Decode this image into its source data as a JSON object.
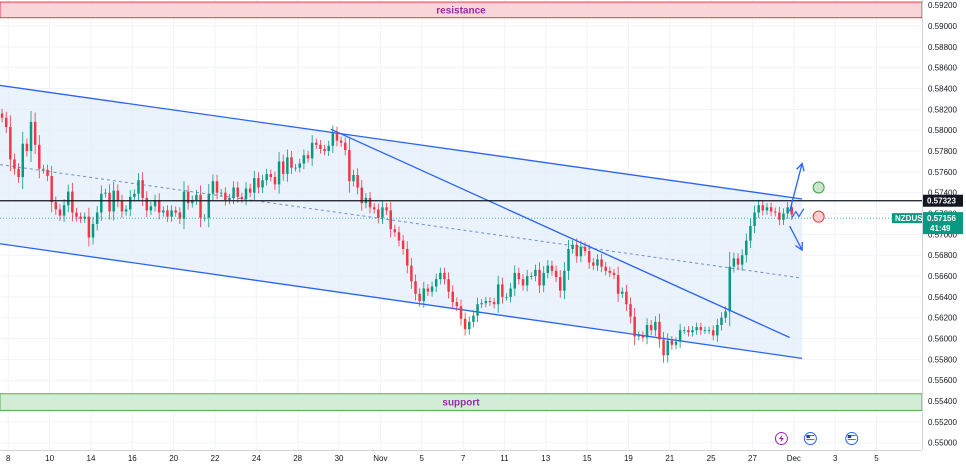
{
  "chart_data": {
    "type": "candlestick",
    "symbol": "NZDUSD",
    "ylim": [
      0.5493,
      0.5925
    ],
    "x_range": [
      0,
      223
    ],
    "y_ticks": [
      0.592,
      0.59,
      0.588,
      0.586,
      0.584,
      0.582,
      0.58,
      0.578,
      0.576,
      0.574,
      0.572,
      0.57,
      0.568,
      0.566,
      0.564,
      0.562,
      0.56,
      0.558,
      0.556,
      0.554,
      0.552,
      0.55
    ],
    "x_ticks": [
      {
        "x": 2,
        "label": "8"
      },
      {
        "x": 12,
        "label": "10"
      },
      {
        "x": 22,
        "label": "14"
      },
      {
        "x": 32,
        "label": "16"
      },
      {
        "x": 42,
        "label": "20"
      },
      {
        "x": 52,
        "label": "22"
      },
      {
        "x": 62,
        "label": "24"
      },
      {
        "x": 72,
        "label": "28"
      },
      {
        "x": 82,
        "label": "30"
      },
      {
        "x": 92,
        "label": "Nov"
      },
      {
        "x": 102,
        "label": "5"
      },
      {
        "x": 112,
        "label": "7"
      },
      {
        "x": 122,
        "label": "11"
      },
      {
        "x": 132,
        "label": "13"
      },
      {
        "x": 142,
        "label": "15"
      },
      {
        "x": 152,
        "label": "19"
      },
      {
        "x": 162,
        "label": "21"
      },
      {
        "x": 172,
        "label": "25"
      },
      {
        "x": 182,
        "label": "27"
      },
      {
        "x": 192,
        "label": "Dec"
      },
      {
        "x": 202,
        "label": "3"
      },
      {
        "x": 212,
        "label": "5"
      }
    ],
    "price_levels": [
      {
        "label": "0.57323",
        "value": 0.57323,
        "bg": "#131722"
      },
      {
        "label": "NZDUSD",
        "value": 0.57156,
        "bg": "#089981",
        "sub": "0.57156",
        "time": "41:49"
      }
    ],
    "zones": [
      {
        "name": "resistance",
        "y_low": 0.5908,
        "y_high": 0.5923,
        "fill": "#f9d6da",
        "stroke": "#f23645",
        "text_color": "#9c27b0"
      },
      {
        "name": "support",
        "y_low": 0.5531,
        "y_high": 0.5547,
        "fill": "#d4ecd6",
        "stroke": "#4caf50",
        "text_color": "#9c27b0"
      }
    ],
    "channel": {
      "upper": {
        "x1": 0,
        "y1": 0.5843,
        "x2": 194,
        "y2": 0.5734
      },
      "lower": {
        "x1": 0,
        "y1": 0.5691,
        "x2": 194,
        "y2": 0.5581
      },
      "mid": {
        "x1": 0,
        "y1": 0.5767,
        "x2": 194,
        "y2": 0.5658
      },
      "fill": "#e3edfb",
      "stroke": "#2962ff"
    },
    "trendline": {
      "x1": 80,
      "y1": 0.5801,
      "x2": 191,
      "y2": 0.5601,
      "stroke": "#2962ff"
    },
    "forecast_arrows": [
      {
        "x1": 191,
        "y1": 0.5722,
        "x2": 194,
        "y2": 0.5768
      },
      {
        "x1": 191,
        "y1": 0.5708,
        "x2": 194,
        "y2": 0.5685
      }
    ],
    "markers": [
      {
        "x": 198,
        "y": 0.5745,
        "fill": "#c8e6c9",
        "stroke": "#43a047"
      },
      {
        "x": 198,
        "y": 0.5717,
        "fill": "#ffcdd2",
        "stroke": "#e53935"
      }
    ],
    "event_icons": [
      {
        "x": 189,
        "y": 0.5504,
        "kind": "lightning",
        "color": "#9c27b0"
      },
      {
        "x": 196,
        "y": 0.5504,
        "kind": "us-flag",
        "color": "#2962ff"
      },
      {
        "x": 206,
        "y": 0.5504,
        "kind": "us-flag",
        "color": "#2962ff"
      }
    ],
    "colors": {
      "up": "#089981",
      "down": "#f23645"
    },
    "close": [
      0.5812,
      0.5803,
      0.5772,
      0.5763,
      0.5755,
      0.5787,
      0.578,
      0.5808,
      0.5786,
      0.5763,
      0.5762,
      0.5756,
      0.5731,
      0.5724,
      0.5718,
      0.5728,
      0.5741,
      0.5721,
      0.5717,
      0.5715,
      0.5717,
      0.5697,
      0.571,
      0.5721,
      0.5739,
      0.574,
      0.5722,
      0.5742,
      0.5732,
      0.5722,
      0.5724,
      0.5736,
      0.5739,
      0.5752,
      0.5735,
      0.5723,
      0.5727,
      0.5733,
      0.5721,
      0.5723,
      0.5717,
      0.5723,
      0.5721,
      0.5715,
      0.5741,
      0.573,
      0.5733,
      0.5738,
      0.5716,
      0.5716,
      0.5739,
      0.5751,
      0.574,
      0.574,
      0.5733,
      0.5735,
      0.5745,
      0.5736,
      0.5734,
      0.5744,
      0.574,
      0.5754,
      0.5745,
      0.5752,
      0.5758,
      0.5755,
      0.5748,
      0.577,
      0.5758,
      0.5774,
      0.5764,
      0.5764,
      0.5768,
      0.5776,
      0.5773,
      0.5788,
      0.5786,
      0.5782,
      0.578,
      0.5785,
      0.5798,
      0.579,
      0.5788,
      0.5781,
      0.5751,
      0.5757,
      0.5745,
      0.573,
      0.5735,
      0.5726,
      0.5724,
      0.5716,
      0.5726,
      0.5723,
      0.5705,
      0.5702,
      0.5694,
      0.5686,
      0.567,
      0.5655,
      0.5643,
      0.5636,
      0.5648,
      0.5645,
      0.565,
      0.5657,
      0.5663,
      0.5657,
      0.5645,
      0.5635,
      0.5631,
      0.5619,
      0.5609,
      0.5616,
      0.5622,
      0.5633,
      0.5634,
      0.5636,
      0.5635,
      0.5633,
      0.5652,
      0.564,
      0.564,
      0.5648,
      0.5663,
      0.5657,
      0.5651,
      0.566,
      0.566,
      0.5666,
      0.5651,
      0.5663,
      0.567,
      0.5665,
      0.5659,
      0.5646,
      0.5665,
      0.5686,
      0.569,
      0.5679,
      0.5688,
      0.5684,
      0.5673,
      0.567,
      0.5676,
      0.5669,
      0.5665,
      0.5663,
      0.5661,
      0.5643,
      0.5645,
      0.5633,
      0.5621,
      0.5602,
      0.5603,
      0.5601,
      0.5613,
      0.5608,
      0.5616,
      0.5599,
      0.5584,
      0.5598,
      0.5594,
      0.5597,
      0.5608,
      0.5608,
      0.5606,
      0.5608,
      0.5611,
      0.5608,
      0.5608,
      0.5608,
      0.5603,
      0.5613,
      0.562,
      0.5626,
      0.5669,
      0.5677,
      0.5671,
      0.568,
      0.5694,
      0.5708,
      0.5721,
      0.5728,
      0.5723,
      0.5726,
      0.5722,
      0.5721,
      0.5714,
      0.572,
      0.5726,
      0.5719
    ]
  }
}
